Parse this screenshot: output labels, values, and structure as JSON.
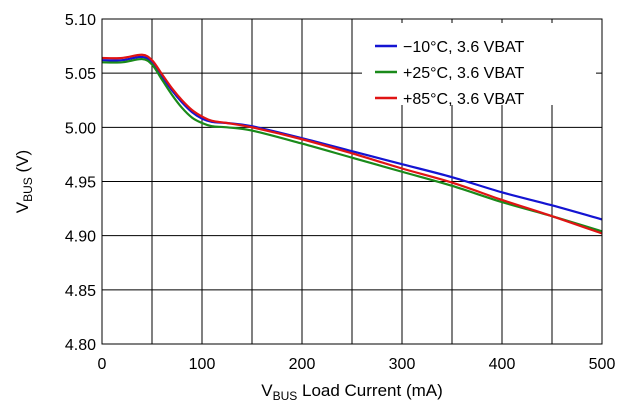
{
  "chart_data": {
    "type": "line",
    "title": "",
    "xlabel": {
      "main": "V",
      "sub": "BUS",
      "rest": " Load Current (mA)"
    },
    "ylabel": {
      "main": "V",
      "sub": "BUS",
      "rest": " (V)"
    },
    "xlim": [
      0,
      500
    ],
    "ylim": [
      4.8,
      5.1
    ],
    "xticks": [
      0,
      100,
      200,
      300,
      400,
      500
    ],
    "yticks": [
      "4.80",
      "4.85",
      "4.90",
      "4.95",
      "5.00",
      "5.05",
      "5.10"
    ],
    "grid": true,
    "legend_position": "top-right",
    "series": [
      {
        "name": "−10°C, 3.6 VBAT",
        "color": "#1414d2",
        "points": [
          [
            0,
            5.062
          ],
          [
            20,
            5.062
          ],
          [
            40,
            5.065
          ],
          [
            50,
            5.06
          ],
          [
            60,
            5.047
          ],
          [
            70,
            5.034
          ],
          [
            80,
            5.023
          ],
          [
            90,
            5.014
          ],
          [
            100,
            5.008
          ],
          [
            110,
            5.005
          ],
          [
            125,
            5.004
          ],
          [
            150,
            5.001
          ],
          [
            200,
            4.99
          ],
          [
            250,
            4.978
          ],
          [
            300,
            4.966
          ],
          [
            350,
            4.954
          ],
          [
            400,
            4.94
          ],
          [
            450,
            4.928
          ],
          [
            500,
            4.915
          ]
        ]
      },
      {
        "name": "+25°C, 3.6 VBAT",
        "color": "#1a8a1a",
        "points": [
          [
            0,
            5.06
          ],
          [
            20,
            5.06
          ],
          [
            40,
            5.063
          ],
          [
            50,
            5.058
          ],
          [
            60,
            5.044
          ],
          [
            70,
            5.03
          ],
          [
            80,
            5.018
          ],
          [
            90,
            5.009
          ],
          [
            100,
            5.004
          ],
          [
            110,
            5.001
          ],
          [
            125,
            5.0
          ],
          [
            150,
            4.997
          ],
          [
            200,
            4.985
          ],
          [
            250,
            4.972
          ],
          [
            300,
            4.959
          ],
          [
            350,
            4.946
          ],
          [
            400,
            4.931
          ],
          [
            450,
            4.918
          ],
          [
            500,
            4.904
          ]
        ]
      },
      {
        "name": "+85°C, 3.6 VBAT",
        "color": "#e01414",
        "points": [
          [
            0,
            5.064
          ],
          [
            20,
            5.064
          ],
          [
            40,
            5.067
          ],
          [
            50,
            5.062
          ],
          [
            60,
            5.049
          ],
          [
            70,
            5.036
          ],
          [
            80,
            5.025
          ],
          [
            90,
            5.016
          ],
          [
            100,
            5.01
          ],
          [
            110,
            5.006
          ],
          [
            125,
            5.004
          ],
          [
            150,
            5.0
          ],
          [
            200,
            4.989
          ],
          [
            250,
            4.976
          ],
          [
            300,
            4.962
          ],
          [
            350,
            4.949
          ],
          [
            400,
            4.933
          ],
          [
            450,
            4.918
          ],
          [
            500,
            4.902
          ]
        ]
      }
    ]
  }
}
